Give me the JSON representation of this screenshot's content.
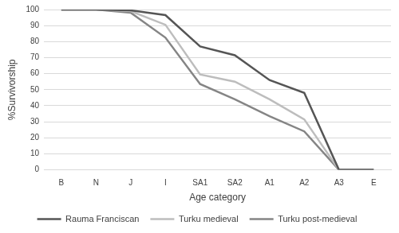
{
  "chart_data": {
    "type": "line",
    "x_label": "Age category",
    "y_label": "%Survivorship",
    "categories": [
      "B",
      "N",
      "J",
      "I",
      "SA1",
      "SA2",
      "A1",
      "A2",
      "A3",
      "E"
    ],
    "series": [
      {
        "name": "Rauma Franciscan",
        "color": "#555555",
        "values": [
          100,
          100,
          99.5,
          96.5,
          77,
          71.5,
          56,
          48,
          0,
          0
        ]
      },
      {
        "name": "Turku medieval",
        "color": "#bdbdbd",
        "values": [
          100,
          100,
          99,
          90.5,
          59.5,
          55,
          44,
          31.5,
          0,
          0
        ]
      },
      {
        "name": "Turku post-medieval",
        "color": "#858585",
        "values": [
          100,
          100,
          98,
          82.5,
          53.5,
          44,
          33.5,
          24,
          0,
          0
        ]
      }
    ],
    "ylim": [
      0,
      100
    ],
    "yticks": [
      0,
      10,
      20,
      30,
      40,
      50,
      60,
      70,
      80,
      90,
      100
    ],
    "grid": true,
    "legend": "bottom"
  }
}
